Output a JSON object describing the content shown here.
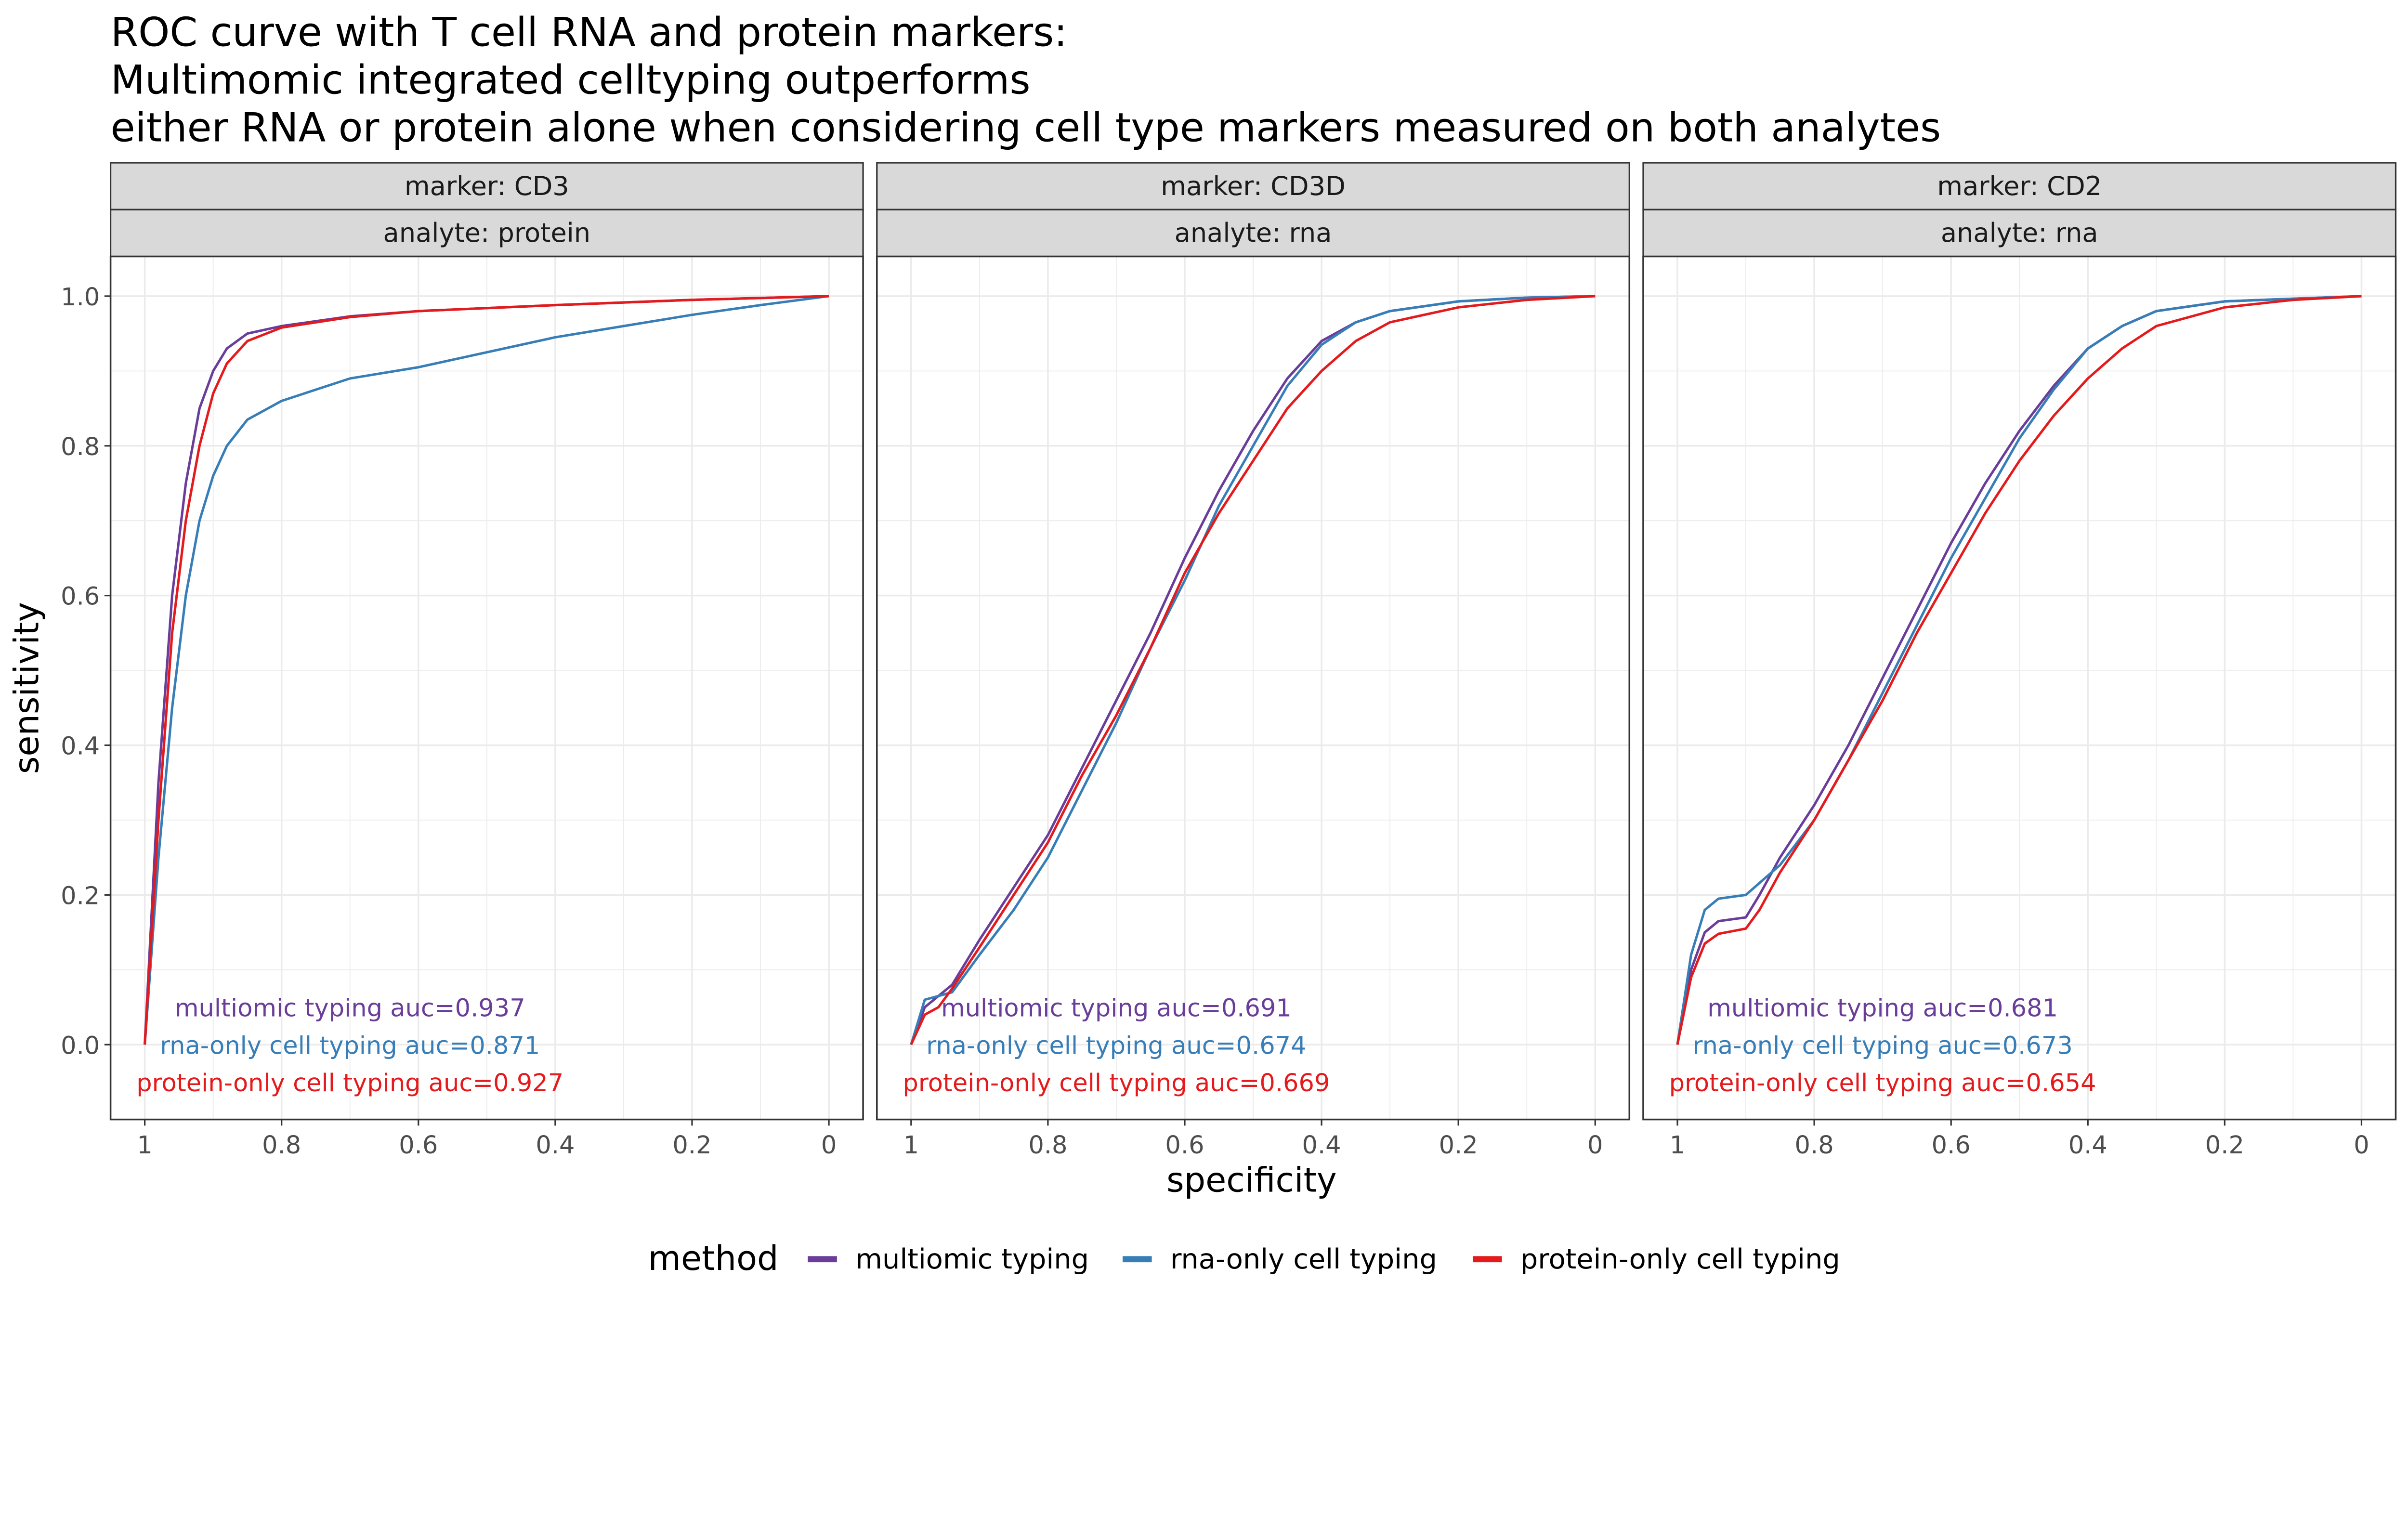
{
  "title_lines": [
    "ROC curve with T cell RNA and protein markers:",
    "Multimomic integrated celltyping outperforms",
    "either RNA or protein alone when considering cell type markers measured on both analytes"
  ],
  "legend": {
    "title": "method",
    "position": "bottom",
    "entries": [
      {
        "label": "multiomic typing",
        "color": "#6a3d9a"
      },
      {
        "label": "rna-only cell typing",
        "color": "#377eb8"
      },
      {
        "label": "protein-only cell typing",
        "color": "#e41a1c"
      }
    ]
  },
  "chart_data": [
    {
      "type": "line",
      "strips": [
        "marker: CD3",
        "analyte: protein"
      ],
      "xlabel": "specificity",
      "ylabel": "sensitivity",
      "xlim": [
        1.05,
        -0.05
      ],
      "ylim": [
        -0.1,
        1.053
      ],
      "x_reversed": true,
      "grid": true,
      "xticks": [
        "1",
        "0.8",
        "0.6",
        "0.4",
        "0.2",
        "0"
      ],
      "yticks": [
        "0.0",
        "0.2",
        "0.4",
        "0.6",
        "0.8",
        "1.0"
      ],
      "annotations": [
        "multiomic typing auc=0.937",
        "rna-only cell typing auc=0.871",
        "protein-only cell typing auc=0.927"
      ],
      "series": [
        {
          "name": "multiomic typing",
          "color": "#6a3d9a",
          "x": [
            1,
            0.98,
            0.96,
            0.94,
            0.92,
            0.9,
            0.88,
            0.85,
            0.8,
            0.7,
            0.6,
            0.4,
            0.2,
            0
          ],
          "y": [
            0,
            0.35,
            0.6,
            0.75,
            0.85,
            0.9,
            0.93,
            0.95,
            0.96,
            0.973,
            0.98,
            0.988,
            0.995,
            1
          ]
        },
        {
          "name": "rna-only cell typing",
          "color": "#377eb8",
          "x": [
            1,
            0.98,
            0.96,
            0.94,
            0.92,
            0.9,
            0.88,
            0.85,
            0.8,
            0.7,
            0.6,
            0.5,
            0.4,
            0.3,
            0.2,
            0.1,
            0
          ],
          "y": [
            0,
            0.25,
            0.45,
            0.6,
            0.7,
            0.76,
            0.8,
            0.835,
            0.86,
            0.89,
            0.905,
            0.925,
            0.945,
            0.96,
            0.975,
            0.988,
            1
          ]
        },
        {
          "name": "protein-only cell typing",
          "color": "#e41a1c",
          "x": [
            1,
            0.98,
            0.96,
            0.94,
            0.92,
            0.9,
            0.88,
            0.85,
            0.8,
            0.7,
            0.6,
            0.4,
            0.2,
            0
          ],
          "y": [
            0,
            0.3,
            0.55,
            0.7,
            0.8,
            0.87,
            0.91,
            0.94,
            0.958,
            0.972,
            0.98,
            0.988,
            0.995,
            1
          ]
        }
      ]
    },
    {
      "type": "line",
      "strips": [
        "marker: CD3D",
        "analyte: rna"
      ],
      "xlabel": "specificity",
      "ylabel": "sensitivity",
      "xlim": [
        1.05,
        -0.05
      ],
      "ylim": [
        -0.1,
        1.053
      ],
      "x_reversed": true,
      "grid": true,
      "xticks": [
        "1",
        "0.8",
        "0.6",
        "0.4",
        "0.2",
        "0"
      ],
      "yticks": [
        "0.0",
        "0.2",
        "0.4",
        "0.6",
        "0.8",
        "1.0"
      ],
      "annotations": [
        "multiomic typing auc=0.691",
        "rna-only cell typing auc=0.674",
        "protein-only cell typing auc=0.669"
      ],
      "series": [
        {
          "name": "multiomic typing",
          "color": "#6a3d9a",
          "x": [
            1,
            0.98,
            0.96,
            0.94,
            0.9,
            0.85,
            0.8,
            0.75,
            0.7,
            0.65,
            0.6,
            0.55,
            0.5,
            0.45,
            0.4,
            0.35,
            0.3,
            0.2,
            0.1,
            0
          ],
          "y": [
            0,
            0.05,
            0.065,
            0.08,
            0.14,
            0.21,
            0.28,
            0.37,
            0.46,
            0.55,
            0.65,
            0.74,
            0.82,
            0.89,
            0.94,
            0.965,
            0.98,
            0.993,
            0.998,
            1
          ]
        },
        {
          "name": "rna-only cell typing",
          "color": "#377eb8",
          "x": [
            1,
            0.98,
            0.96,
            0.94,
            0.9,
            0.85,
            0.8,
            0.75,
            0.7,
            0.65,
            0.6,
            0.55,
            0.5,
            0.45,
            0.4,
            0.35,
            0.3,
            0.2,
            0.1,
            0
          ],
          "y": [
            0,
            0.06,
            0.065,
            0.07,
            0.12,
            0.18,
            0.25,
            0.34,
            0.43,
            0.53,
            0.62,
            0.72,
            0.8,
            0.88,
            0.935,
            0.965,
            0.98,
            0.993,
            0.998,
            1
          ]
        },
        {
          "name": "protein-only cell typing",
          "color": "#e41a1c",
          "x": [
            1,
            0.98,
            0.96,
            0.94,
            0.9,
            0.85,
            0.8,
            0.75,
            0.7,
            0.65,
            0.6,
            0.55,
            0.5,
            0.45,
            0.4,
            0.35,
            0.3,
            0.2,
            0.1,
            0
          ],
          "y": [
            0,
            0.04,
            0.05,
            0.075,
            0.13,
            0.2,
            0.27,
            0.36,
            0.44,
            0.53,
            0.63,
            0.71,
            0.78,
            0.85,
            0.9,
            0.94,
            0.965,
            0.985,
            0.995,
            1
          ]
        }
      ]
    },
    {
      "type": "line",
      "strips": [
        "marker: CD2",
        "analyte: rna"
      ],
      "xlabel": "specificity",
      "ylabel": "sensitivity",
      "xlim": [
        1.05,
        -0.05
      ],
      "ylim": [
        -0.1,
        1.053
      ],
      "x_reversed": true,
      "grid": true,
      "xticks": [
        "1",
        "0.8",
        "0.6",
        "0.4",
        "0.2",
        "0"
      ],
      "yticks": [
        "0.0",
        "0.2",
        "0.4",
        "0.6",
        "0.8",
        "1.0"
      ],
      "annotations": [
        "multiomic typing auc=0.681",
        "rna-only cell typing auc=0.673",
        "protein-only cell typing auc=0.654"
      ],
      "series": [
        {
          "name": "multiomic typing",
          "color": "#6a3d9a",
          "x": [
            1,
            0.98,
            0.96,
            0.94,
            0.9,
            0.88,
            0.85,
            0.8,
            0.75,
            0.7,
            0.65,
            0.6,
            0.55,
            0.5,
            0.45,
            0.4,
            0.35,
            0.3,
            0.2,
            0
          ],
          "y": [
            0,
            0.1,
            0.15,
            0.165,
            0.17,
            0.2,
            0.25,
            0.32,
            0.4,
            0.49,
            0.58,
            0.67,
            0.75,
            0.82,
            0.88,
            0.93,
            0.96,
            0.98,
            0.993,
            1
          ]
        },
        {
          "name": "rna-only cell typing",
          "color": "#377eb8",
          "x": [
            1,
            0.98,
            0.96,
            0.94,
            0.9,
            0.85,
            0.8,
            0.75,
            0.7,
            0.65,
            0.6,
            0.55,
            0.5,
            0.45,
            0.4,
            0.35,
            0.3,
            0.2,
            0
          ],
          "y": [
            0,
            0.12,
            0.18,
            0.195,
            0.2,
            0.24,
            0.3,
            0.38,
            0.47,
            0.56,
            0.65,
            0.73,
            0.81,
            0.875,
            0.93,
            0.96,
            0.98,
            0.993,
            1
          ]
        },
        {
          "name": "protein-only cell typing",
          "color": "#e41a1c",
          "x": [
            1,
            0.98,
            0.96,
            0.94,
            0.9,
            0.88,
            0.85,
            0.8,
            0.75,
            0.7,
            0.65,
            0.6,
            0.55,
            0.5,
            0.45,
            0.4,
            0.35,
            0.3,
            0.2,
            0.1,
            0
          ],
          "y": [
            0,
            0.09,
            0.135,
            0.148,
            0.155,
            0.18,
            0.23,
            0.3,
            0.38,
            0.46,
            0.55,
            0.63,
            0.71,
            0.78,
            0.84,
            0.89,
            0.93,
            0.96,
            0.985,
            0.995,
            1
          ]
        }
      ]
    }
  ]
}
